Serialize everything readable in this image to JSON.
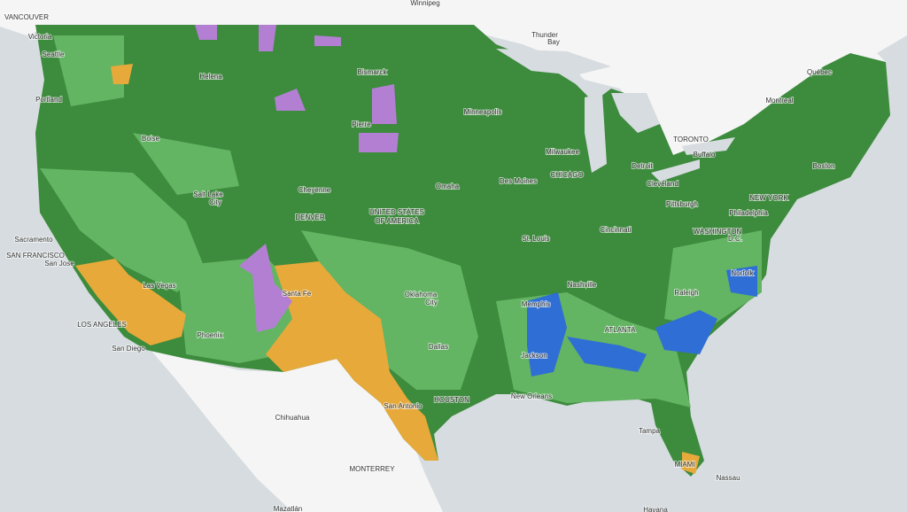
{
  "labels": [
    "VANCOUVER",
    "Victoria",
    "Seattle",
    "Portland",
    "Winnipeg",
    "Thunder",
    "Bay",
    "Québec",
    "Montreal",
    "Helena",
    "Bismarck",
    "Minneapolis",
    "Pierre",
    "Boise",
    "TORONTO",
    "Milwaukee",
    "Buffalo",
    "Detroit",
    "Boston",
    "CHICAGO",
    "Cheyenne",
    "Omaha",
    "Des Moines",
    "Cleveland",
    "Salt Lake",
    "City",
    "NEW YORK",
    "Pittsburgh",
    "DENVER",
    "UNITED STATES",
    "OF AMERICA",
    "Philadelphia",
    "Cincinnati",
    "WASHINGTON",
    "D.C.",
    "Sacramento",
    "St. Louis",
    "SAN FRANCISCO",
    "San Jose",
    "Las Vegas",
    "Santa Fe",
    "Oklahoma",
    "City",
    "Nashville",
    "Norfolk",
    "Raleigh",
    "Memphis",
    "LOS ANGELES",
    "Phoenix",
    "ATLANTA",
    "San Diego",
    "Dallas",
    "Jackson",
    "HOUSTON",
    "New Orleans",
    "San Antonio",
    "Chihuahua",
    "Tampa",
    "MONTERREY",
    "MIAMI",
    "Nassau",
    "Mazatlán",
    "Havana"
  ]
}
